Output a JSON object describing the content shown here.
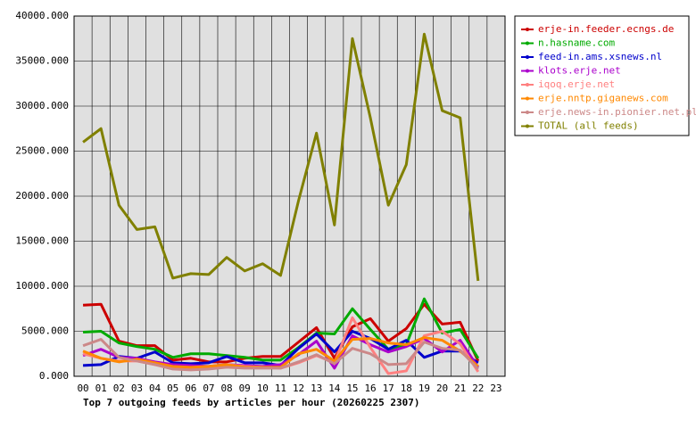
{
  "chart_data": {
    "type": "line",
    "title": "Top 7 outgoing feeds by articles per hour (20260225 2307)",
    "categories": [
      "00",
      "01",
      "02",
      "03",
      "04",
      "05",
      "06",
      "07",
      "08",
      "09",
      "10",
      "11",
      "12",
      "13",
      "14",
      "15",
      "16",
      "17",
      "18",
      "19",
      "20",
      "21",
      "22",
      "23"
    ],
    "ylim": [
      0,
      40000
    ],
    "yticks": [
      {
        "value": 0,
        "label": "0.000"
      },
      {
        "value": 5000,
        "label": "5000.000"
      },
      {
        "value": 10000,
        "label": "10000.000"
      },
      {
        "value": 15000,
        "label": "15000.000"
      },
      {
        "value": 20000,
        "label": "20000.000"
      },
      {
        "value": 25000,
        "label": "25000.000"
      },
      {
        "value": 30000,
        "label": "30000.000"
      },
      {
        "value": 35000,
        "label": "35000.000"
      },
      {
        "value": 40000,
        "label": "40000.000"
      }
    ],
    "grid": true,
    "legend": "right",
    "series": [
      {
        "name": "erje-in.feeder.ecngs.de",
        "color": "#cc0000",
        "values": [
          7900,
          8000,
          3900,
          3400,
          3400,
          1800,
          2000,
          1600,
          1600,
          2000,
          2200,
          2200,
          3800,
          5400,
          2000,
          5500,
          6400,
          3900,
          5300,
          8000,
          5800,
          6000,
          1700,
          null
        ]
      },
      {
        "name": "n.hasname.com",
        "color": "#00aa00",
        "values": [
          4900,
          5000,
          3700,
          3300,
          3000,
          2100,
          2500,
          2500,
          2300,
          2100,
          1800,
          1800,
          3200,
          4800,
          4700,
          7500,
          5200,
          3000,
          3500,
          8600,
          4800,
          5200,
          2000,
          null
        ]
      },
      {
        "name": "feed-in.ams.xsnews.nl",
        "color": "#0000cc",
        "values": [
          1200,
          1300,
          2200,
          2000,
          2700,
          1500,
          1400,
          1500,
          2200,
          1500,
          1500,
          1200,
          3100,
          4700,
          2700,
          5000,
          4200,
          3000,
          4000,
          2100,
          2800,
          2800,
          1500,
          null
        ]
      },
      {
        "name": "klots.erje.net",
        "color": "#aa00cc",
        "values": [
          2300,
          3000,
          2100,
          2000,
          1600,
          1300,
          1200,
          1100,
          1300,
          1200,
          1100,
          1300,
          2400,
          3900,
          900,
          4500,
          3500,
          2700,
          3300,
          4200,
          2700,
          4000,
          1000,
          null
        ]
      },
      {
        "name": "iqoq.erje.net",
        "color": "#ff8080",
        "values": [
          2500,
          2000,
          1700,
          1700,
          1300,
          1000,
          800,
          1000,
          1300,
          1100,
          1000,
          900,
          1500,
          2300,
          1500,
          6500,
          3200,
          300,
          600,
          4500,
          5000,
          3600,
          500,
          null
        ]
      },
      {
        "name": "erje.nntp.giganews.com",
        "color": "#ff8800",
        "values": [
          2800,
          2000,
          1600,
          1900,
          1500,
          1100,
          1000,
          1100,
          1300,
          1000,
          1000,
          1000,
          2500,
          3000,
          1700,
          4100,
          4200,
          3700,
          3500,
          4300,
          4000,
          2800,
          1100,
          null
        ]
      },
      {
        "name": "erje.news-in.pionier.net.pl",
        "color": "#cc8888",
        "values": [
          3400,
          4100,
          2100,
          1700,
          1300,
          800,
          700,
          800,
          1000,
          900,
          900,
          900,
          1600,
          2400,
          1400,
          3100,
          2500,
          1300,
          1400,
          3800,
          3100,
          2900,
          800,
          null
        ]
      },
      {
        "name": "TOTAL (all feeds)",
        "color": "#808000",
        "values": [
          26000,
          27500,
          19000,
          16300,
          16600,
          10900,
          11400,
          11300,
          13200,
          11700,
          12500,
          11200,
          19500,
          27000,
          16800,
          37500,
          28700,
          19000,
          23500,
          38000,
          29500,
          28700,
          10600,
          null
        ]
      }
    ]
  }
}
